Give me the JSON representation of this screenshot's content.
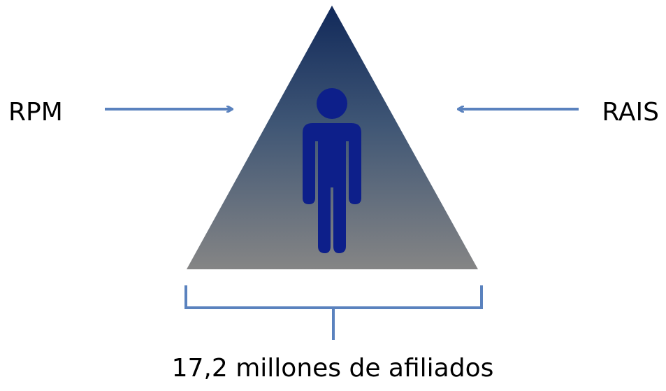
{
  "diagram": {
    "left_label": "RPM",
    "right_label": "RAIS",
    "bottom_label": "17,2 millones de afiliados"
  }
}
